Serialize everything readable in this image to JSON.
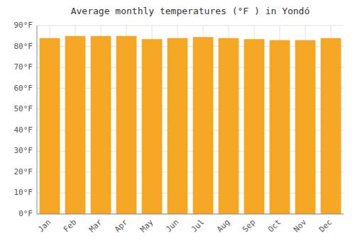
{
  "chart_data": {
    "type": "bar",
    "title": "Average monthly temperatures (°F ) in Yondó",
    "categories": [
      "Jan",
      "Feb",
      "Mar",
      "Apr",
      "May",
      "Jun",
      "Jul",
      "Aug",
      "Sep",
      "Oct",
      "Nov",
      "Dec"
    ],
    "values": [
      84.0,
      85.0,
      85.0,
      85.0,
      83.5,
      84.0,
      84.5,
      84.0,
      83.5,
      83.0,
      83.0,
      84.0
    ],
    "color": "#F5A623",
    "ylim": [
      0,
      90
    ],
    "yticks": [
      {
        "value": 0,
        "label": "0°F"
      },
      {
        "value": 10,
        "label": "10°F"
      },
      {
        "value": 20,
        "label": "20°F"
      },
      {
        "value": 30,
        "label": "30°F"
      },
      {
        "value": 40,
        "label": "40°F"
      },
      {
        "value": 50,
        "label": "50°F"
      },
      {
        "value": 60,
        "label": "60°F"
      },
      {
        "value": 70,
        "label": "70°F"
      },
      {
        "value": 80,
        "label": "80°F"
      },
      {
        "value": 90,
        "label": "90°F"
      }
    ],
    "grid": true
  }
}
